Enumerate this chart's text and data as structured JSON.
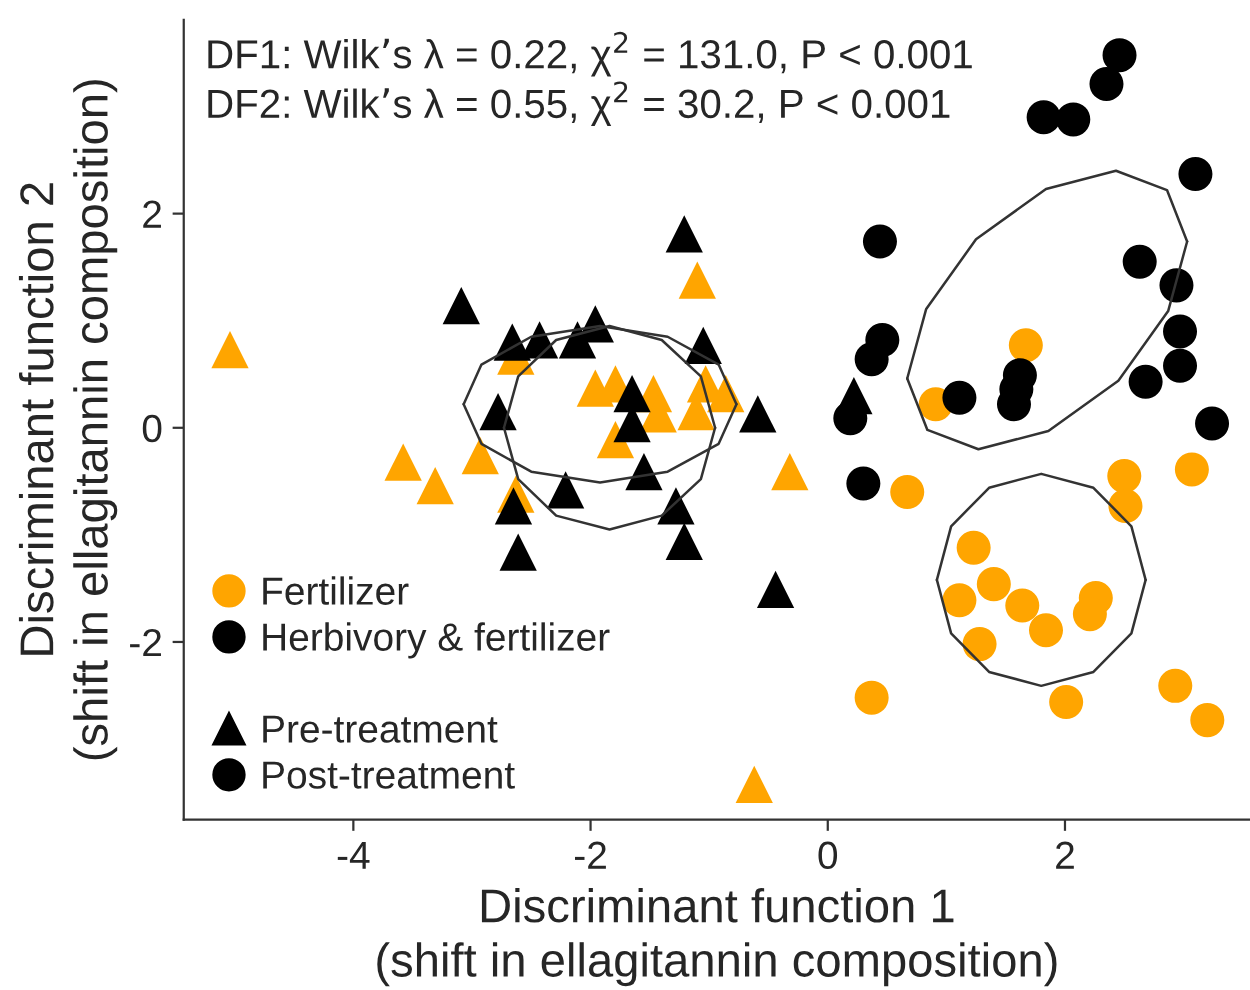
{
  "chart_data": {
    "type": "scatter",
    "xlabel": "Discriminant function 1\n(shift in ellagitannin composition)",
    "ylabel": "Discriminant function 2\n(shift in ellagitannin composition)",
    "xlim": [
      -5.43,
      3.56
    ],
    "ylim": [
      -3.66,
      3.81
    ],
    "xticks": [
      -4,
      -2,
      0,
      2
    ],
    "yticks": [
      -2,
      0,
      2
    ],
    "grid": false,
    "legend": "bottom left",
    "annotations": [
      "DF1: Wilk’s λ = 0.22, χ$^{2}$ = 131.0, P < 0.001",
      "DF2: Wilk’s λ = 0.55, χ$^{2}$ = 30.2, P < 0.001",
      "Post-treatment"
    ],
    "series": [
      {
        "color": "#ffa500",
        "marker": "triangle",
        "x": [
          -5.04,
          -1.1,
          -3.58,
          -3.31,
          -2.93,
          -2.63,
          -2.63,
          -1.96,
          -1.79,
          -1.79,
          -1.47,
          -1.43,
          -1.11,
          -1.03,
          -0.86,
          -0.32,
          -0.62
        ],
        "values": [
          0.73,
          1.38,
          -0.32,
          -0.54,
          -0.26,
          0.67,
          -0.62,
          0.37,
          0.41,
          -0.11,
          0.32,
          0.13,
          0.15,
          0.41,
          0.32,
          -0.41,
          -3.33
        ]
      },
      {
        "name": "Pre-treatment",
        "color": "#000000",
        "marker": "triangle",
        "x": [
          -1.21,
          -3.09,
          -2.66,
          -2.43,
          -2.11,
          -1.96,
          -1.05,
          -2.78,
          -1.65,
          -1.65,
          -0.59,
          -1.55,
          -2.21,
          -2.65,
          -1.28,
          -1.21,
          -2.61,
          -0.44,
          0.22
        ],
        "values": [
          1.81,
          1.14,
          0.8,
          0.82,
          0.82,
          0.97,
          0.77,
          0.15,
          0.32,
          0.04,
          0.13,
          -0.41,
          -0.58,
          -0.73,
          -0.73,
          -1.06,
          -1.16,
          -1.51,
          0.3
        ]
      },
      {
        "name": "Fertilizer",
        "color": "#ffa500",
        "marker": "circle",
        "x": [
          1.67,
          0.91,
          0.67,
          2.5,
          2.51,
          3.07,
          1.23,
          1.4,
          1.11,
          1.64,
          1.84,
          2.26,
          2.21,
          1.28,
          0.37,
          2.01,
          2.93,
          3.2
        ],
        "values": [
          0.77,
          0.22,
          -0.6,
          -0.45,
          -0.73,
          -0.39,
          -1.12,
          -1.46,
          -1.61,
          -1.66,
          -1.89,
          -1.59,
          -1.74,
          -2.02,
          -2.52,
          -2.56,
          -2.41,
          -2.73
        ]
      },
      {
        "name": "Herbivory & fertilizer",
        "color": "#000000",
        "marker": "circle",
        "x": [
          2.46,
          2.35,
          1.82,
          2.07,
          3.1,
          0.44,
          2.63,
          2.94,
          0.46,
          0.37,
          2.97,
          2.97,
          2.68,
          1.62,
          1.59,
          1.57,
          1.11,
          0.19,
          3.24,
          0.3
        ],
        "values": [
          3.48,
          3.21,
          2.9,
          2.88,
          2.37,
          1.74,
          1.55,
          1.33,
          0.82,
          0.64,
          0.9,
          0.58,
          0.43,
          0.49,
          0.36,
          0.22,
          0.28,
          0.09,
          0.04,
          -0.52
        ]
      },
      {
        "type": "line",
        "color": "#333333",
        "x": [
          -3.07,
          -2.92,
          -2.5,
          -1.92,
          -1.35,
          -0.92,
          -0.77
        ],
        "values": [
          0.22,
          0.59,
          0.85,
          0.95,
          0.85,
          0.59,
          0.22
        ]
      },
      {
        "type": "line",
        "color": "#333333",
        "x": [
          -3.07,
          -2.92,
          -2.5,
          -1.92,
          -1.35,
          -0.92,
          -0.77
        ],
        "values": [
          0.22,
          -0.15,
          -0.41,
          -0.51,
          -0.41,
          -0.15,
          0.22
        ]
      },
      {
        "type": "line",
        "color": "#333333",
        "x": [
          -2.73,
          -2.61,
          -2.29,
          -1.84,
          -1.4,
          -1.07,
          -0.95
        ],
        "values": [
          0,
          0.48,
          0.82,
          0.95,
          0.82,
          0.48,
          0
        ]
      },
      {
        "type": "line",
        "color": "#333333",
        "x": [
          -2.73,
          -2.61,
          -2.29,
          -1.84,
          -1.4,
          -1.07,
          -0.95
        ],
        "values": [
          0,
          -0.48,
          -0.82,
          -0.95,
          -0.82,
          -0.48,
          0
        ]
      },
      {
        "type": "line",
        "color": "#333333",
        "x": [
          0.92,
          1.04,
          1.36,
          1.8,
          2.24,
          2.56,
          2.68
        ],
        "values": [
          -1.42,
          -0.92,
          -0.56,
          -0.43,
          -0.56,
          -0.92,
          -1.42
        ]
      },
      {
        "type": "line",
        "color": "#333333",
        "x": [
          0.92,
          1.04,
          1.36,
          1.8,
          2.24,
          2.56,
          2.68
        ],
        "values": [
          -1.42,
          -1.92,
          -2.28,
          -2.41,
          -2.28,
          -1.92,
          -1.42
        ]
      },
      {
        "type": "line",
        "color": "#333333",
        "x": [
          0.67,
          0.83,
          1.25,
          1.84,
          2.43,
          2.86,
          3.03
        ],
        "values": [
          0.46,
          1.11,
          1.76,
          2.23,
          2.4,
          2.22,
          1.74
        ]
      },
      {
        "type": "line",
        "color": "#333333",
        "x": [
          0.67,
          0.84,
          1.27,
          1.86,
          2.45,
          2.87,
          3.03
        ],
        "values": [
          0.46,
          -0.02,
          -0.2,
          -0.03,
          0.44,
          1.09,
          1.74
        ]
      }
    ]
  }
}
